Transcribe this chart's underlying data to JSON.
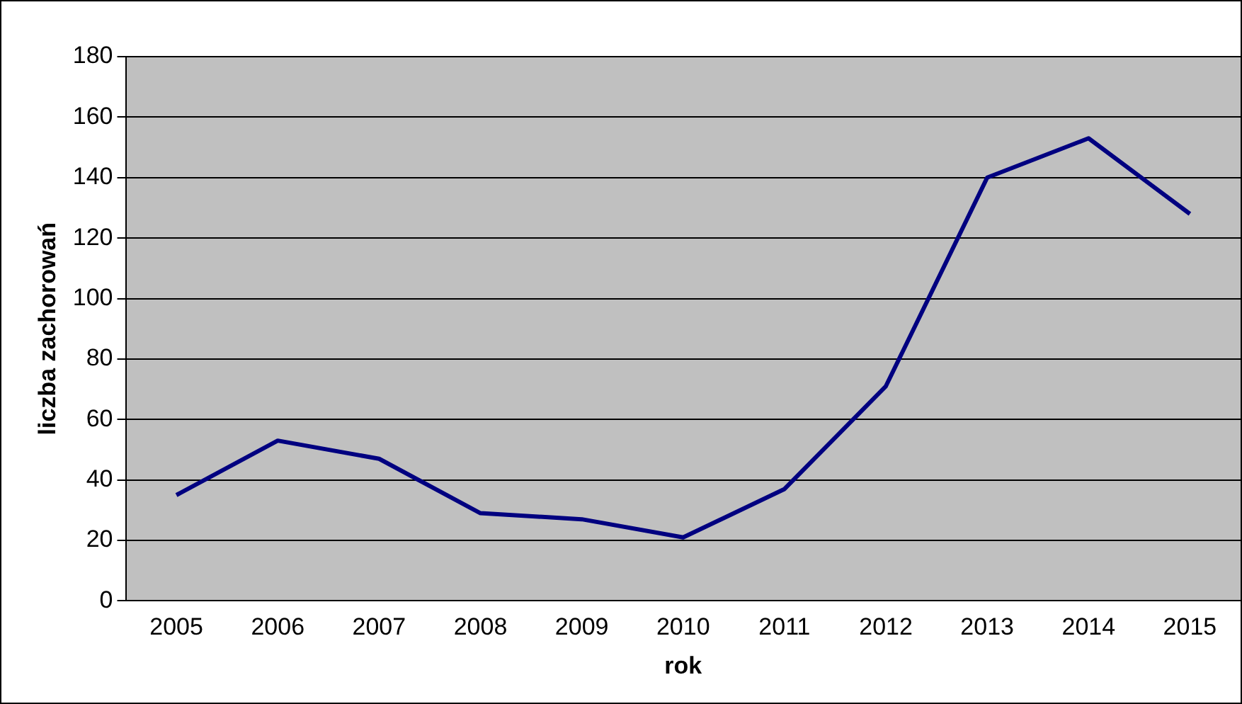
{
  "chart_data": {
    "type": "line",
    "xlabel": "rok",
    "ylabel": "liczba zachorowań",
    "categories": [
      "2005",
      "2006",
      "2007",
      "2008",
      "2009",
      "2010",
      "2011",
      "2012",
      "2013",
      "2014",
      "2015"
    ],
    "series": [
      {
        "color": "#000080",
        "values": [
          35,
          53,
          47,
          29,
          27,
          21,
          37,
          71,
          140,
          153,
          128
        ]
      }
    ],
    "ylim": [
      0,
      180
    ],
    "yticks": [
      0,
      20,
      40,
      60,
      80,
      100,
      120,
      140,
      160,
      180
    ],
    "grid": "y",
    "legend": false,
    "marker": "none",
    "line_style": "solid"
  }
}
